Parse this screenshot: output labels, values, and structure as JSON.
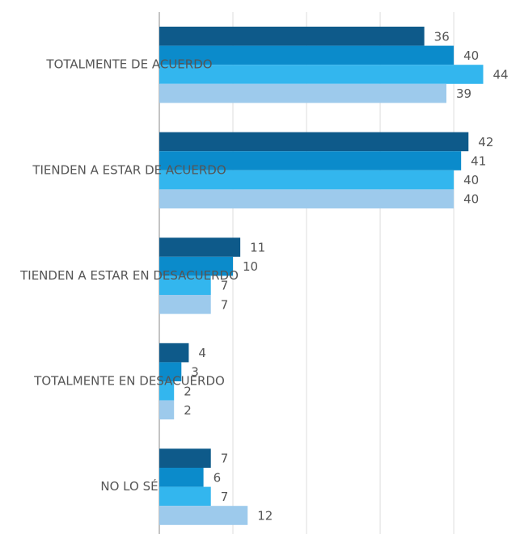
{
  "chart_data": {
    "type": "barh",
    "categories": [
      "TOTALMENTE DE ACUERDO",
      "TIENDEN A ESTAR DE ACUERDO",
      "TIENDEN A ESTAR EN DESACUERDO",
      "TOTALMENTE EN DESACUERDO",
      "NO LO SÉ"
    ],
    "series": [
      {
        "color": "#0e5a8a",
        "values": [
          36,
          42,
          11,
          4,
          7
        ]
      },
      {
        "color": "#0b8bcb",
        "values": [
          40,
          41,
          10,
          3,
          6
        ]
      },
      {
        "color": "#33b6ee",
        "values": [
          44,
          40,
          7,
          2,
          7
        ]
      },
      {
        "color": "#9dcaec",
        "values": [
          39,
          40,
          7,
          2,
          12
        ]
      }
    ],
    "xlim": [
      0,
      49
    ],
    "xticks": [
      0,
      10,
      20,
      30,
      40
    ],
    "grid": true
  }
}
